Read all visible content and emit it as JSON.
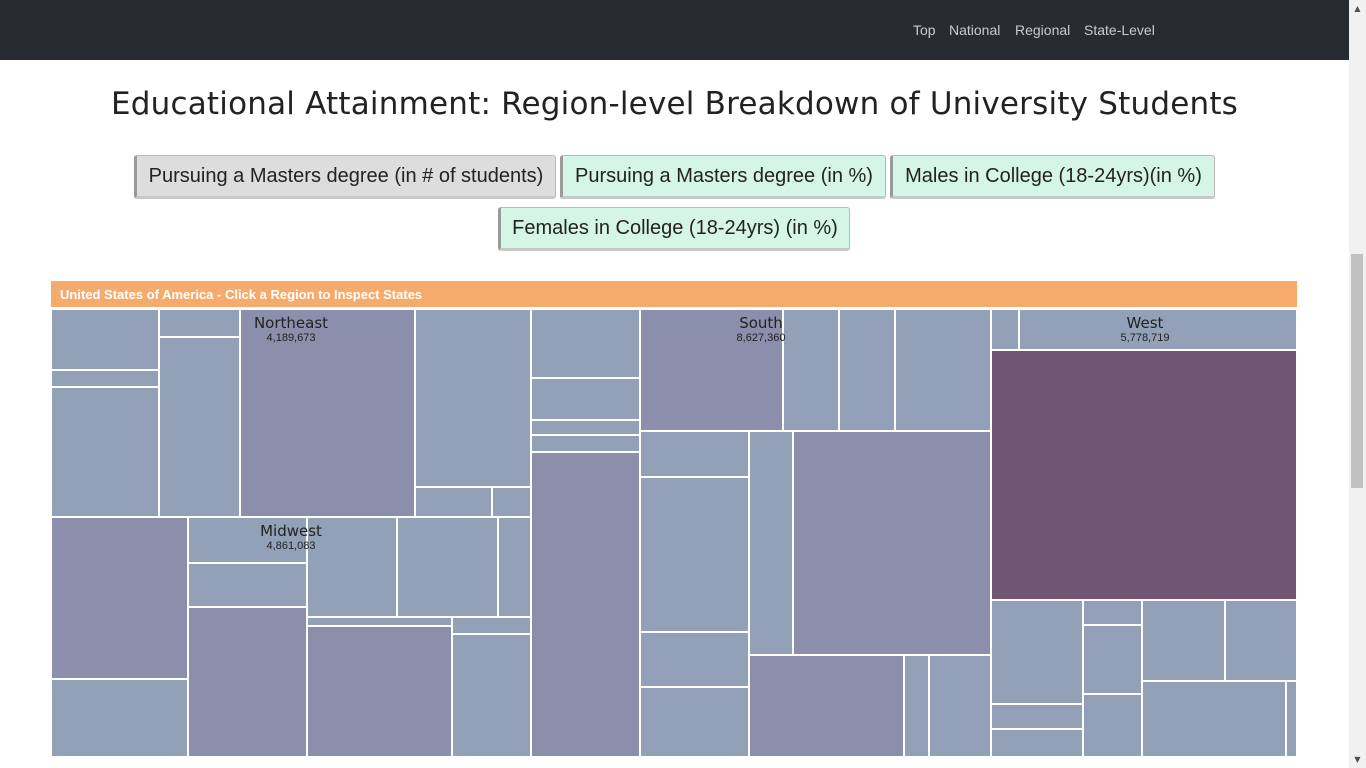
{
  "nav": {
    "links": [
      "Top",
      "National",
      "Regional",
      "State-Level"
    ]
  },
  "page": {
    "title": "Educational Attainment: Region-level Breakdown of University Students"
  },
  "buttons": [
    {
      "label": "Pursuing a Masters degree (in # of students)",
      "active": true
    },
    {
      "label": "Pursuing a Masters degree (in %)",
      "active": false
    },
    {
      "label": "Males in College (18-24yrs)(in %)",
      "active": false
    },
    {
      "label": "Females in College (18-24yrs) (in %)",
      "active": false
    }
  ],
  "treemap": {
    "header": "United States of America - Click a Region to Inspect States",
    "regions": [
      {
        "name": "Northeast",
        "value": "4,189,673"
      },
      {
        "name": "South",
        "value": "8,627,360"
      },
      {
        "name": "West",
        "value": "5,778,719"
      },
      {
        "name": "Midwest",
        "value": "4,861,083"
      }
    ]
  },
  "colors": {
    "navbar": "#272c33",
    "header_bar": "#f5ab6c",
    "active_button": "#dddddd",
    "inactive_button": "#d5f5e6",
    "cell_default": "#92a0b8",
    "cell_mid": "#8c8fab",
    "cell_dark": "#705575"
  }
}
